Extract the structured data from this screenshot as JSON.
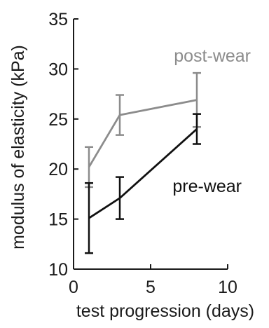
{
  "chart_data": {
    "type": "line",
    "xlabel": "test progression (days)",
    "ylabel": "modulus of elasticity (kPa)",
    "xlim": [
      0,
      10
    ],
    "ylim": [
      10,
      35
    ],
    "x_ticks": [
      0,
      5,
      10
    ],
    "y_ticks": [
      10,
      15,
      20,
      25,
      30,
      35
    ],
    "grid": false,
    "legend": "inline labels",
    "series": [
      {
        "name": "post-wear",
        "color": "#8c8c8c",
        "x": [
          1,
          3,
          8
        ],
        "y": [
          20.2,
          25.4,
          26.9
        ],
        "err": [
          2.0,
          2.0,
          2.7
        ]
      },
      {
        "name": "pre-wear",
        "color": "#111111",
        "x": [
          1,
          3,
          8
        ],
        "y": [
          15.1,
          17.1,
          24.0
        ],
        "err": [
          3.5,
          2.1,
          1.5
        ]
      }
    ]
  }
}
